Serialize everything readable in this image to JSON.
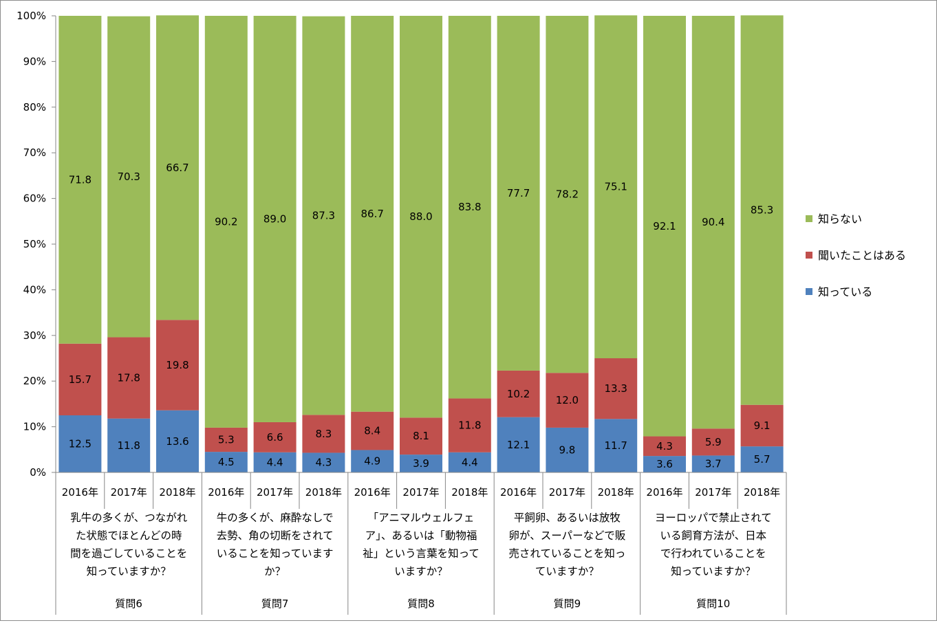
{
  "chart_data": {
    "type": "bar",
    "stacked": true,
    "percent_stacked": true,
    "y_ticks": [
      "0%",
      "10%",
      "20%",
      "30%",
      "40%",
      "50%",
      "60%",
      "70%",
      "80%",
      "90%",
      "100%"
    ],
    "ylim": [
      0,
      100
    ],
    "grid": false,
    "legend_position": "right",
    "years": [
      "2016年",
      "2017年",
      "2018年"
    ],
    "groups": [
      {
        "name": "質問6",
        "question": [
          "乳牛の多くが、つながれ",
          "た状態でほとんどの時",
          "間を過ごしていることを",
          "知っていますか？"
        ]
      },
      {
        "name": "質問7",
        "question": [
          "牛の多くが、麻酔なしで",
          "去勢、角の切断をされて",
          "いることを知っています",
          "か？"
        ]
      },
      {
        "name": "質問8",
        "question": [
          "「アニマルウェルフェ",
          "ア」、あるいは「動物福",
          "祉」という言葉を知って",
          "いますか？"
        ]
      },
      {
        "name": "質問9",
        "question": [
          "平飼卵、あるいは放牧",
          "卵が、スーパーなどで販",
          "売されていることを知っ",
          "ていますか？"
        ]
      },
      {
        "name": "質問10",
        "question": [
          "ヨーロッパで禁止されて",
          "いる飼育方法が、日本",
          "で行われていることを",
          "知っていますか？"
        ]
      }
    ],
    "series": [
      {
        "name": "知っている",
        "color": "#4f81bd",
        "values": [
          12.5,
          11.8,
          13.6,
          4.5,
          4.4,
          4.3,
          4.9,
          3.9,
          4.4,
          12.1,
          9.8,
          11.7,
          3.6,
          3.7,
          5.7
        ],
        "labels": [
          "12.5",
          "11.8",
          "13.6",
          "4.5",
          "4.4",
          "4.3",
          "4.9",
          "3.9",
          "4.4",
          "12.1",
          "9.8",
          "11.7",
          "3.6",
          "3.7",
          "5.7"
        ]
      },
      {
        "name": "聞いたことはある",
        "color": "#c0504d",
        "values": [
          15.7,
          17.8,
          19.8,
          5.3,
          6.6,
          8.3,
          8.4,
          8.1,
          11.8,
          10.2,
          12.0,
          13.3,
          4.3,
          5.9,
          9.1
        ],
        "labels": [
          "15.7",
          "17.8",
          "19.8",
          "5.3",
          "6.6",
          "8.3",
          "8.4",
          "8.1",
          "11.8",
          "10.2",
          "12.0",
          "13.3",
          "4.3",
          "5.9",
          "9.1"
        ]
      },
      {
        "name": "知らない",
        "color": "#9bbb59",
        "values": [
          71.8,
          70.3,
          66.7,
          90.2,
          89.0,
          87.3,
          86.7,
          88.0,
          83.8,
          77.7,
          78.2,
          75.1,
          92.1,
          90.4,
          85.3
        ],
        "labels": [
          "71.8",
          "70.3",
          "66.7",
          "90.2",
          "89.0",
          "87.3",
          "86.7",
          "88.0",
          "83.8",
          "77.7",
          "78.2",
          "75.1",
          "92.1",
          "90.4",
          "85.3"
        ]
      }
    ],
    "legend_order": [
      "知らない",
      "聞いたことはある",
      "知っている"
    ]
  }
}
